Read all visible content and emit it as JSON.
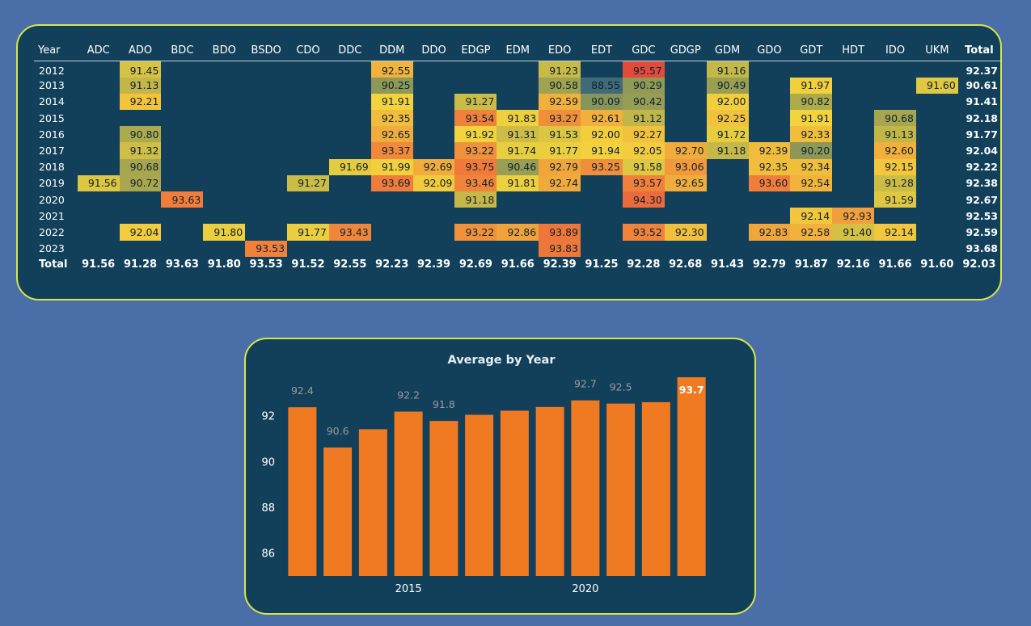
{
  "matrix": {
    "year_header": "Year",
    "total_header": "Total",
    "columns": [
      "ADC",
      "ADO",
      "BDC",
      "BDO",
      "BSDO",
      "CDO",
      "DDC",
      "DDM",
      "DDO",
      "EDGP",
      "EDM",
      "EDO",
      "EDT",
      "GDC",
      "GDGP",
      "GDM",
      "GDO",
      "GDT",
      "HDT",
      "IDO",
      "UKM"
    ],
    "rows": [
      {
        "year": "2012",
        "cells": {
          "ADO": "91.45",
          "DDM": "92.55",
          "EDO": "91.23",
          "GDC": "95.57",
          "GDM": "91.16"
        },
        "total": "92.37"
      },
      {
        "year": "2013",
        "cells": {
          "ADO": "91.13",
          "DDM": "90.25",
          "EDO": "90.58",
          "EDT": "88.55",
          "GDC": "90.29",
          "GDM": "90.49",
          "GDT": "91.97",
          "UKM": "91.60"
        },
        "total": "90.61"
      },
      {
        "year": "2014",
        "cells": {
          "ADO": "92.21",
          "DDM": "91.91",
          "EDGP": "91.27",
          "EDO": "92.59",
          "EDT": "90.09",
          "GDC": "90.42",
          "GDM": "92.00",
          "GDT": "90.82"
        },
        "total": "91.41"
      },
      {
        "year": "2015",
        "cells": {
          "DDM": "92.35",
          "EDGP": "93.54",
          "EDM": "91.83",
          "EDO": "93.27",
          "EDT": "92.61",
          "GDC": "91.12",
          "GDM": "92.25",
          "GDT": "91.91",
          "IDO": "90.68"
        },
        "total": "92.18"
      },
      {
        "year": "2016",
        "cells": {
          "ADO": "90.80",
          "DDM": "92.65",
          "EDGP": "91.92",
          "EDM": "91.31",
          "EDO": "91.53",
          "EDT": "92.00",
          "GDC": "92.27",
          "GDM": "91.72",
          "GDT": "92.33",
          "IDO": "91.13"
        },
        "total": "91.77"
      },
      {
        "year": "2017",
        "cells": {
          "ADO": "91.32",
          "DDM": "93.37",
          "EDGP": "93.22",
          "EDM": "91.74",
          "EDO": "91.77",
          "EDT": "91.94",
          "GDC": "92.05",
          "GDGP": "92.70",
          "GDM": "91.18",
          "GDO": "92.39",
          "GDT": "90.20",
          "IDO": "92.60"
        },
        "total": "92.04"
      },
      {
        "year": "2018",
        "cells": {
          "ADO": "90.68",
          "DDC": "91.69",
          "DDM": "91.99",
          "DDO": "92.69",
          "EDGP": "93.75",
          "EDM": "90.46",
          "EDO": "92.79",
          "EDT": "93.25",
          "GDC": "91.58",
          "GDGP": "93.06",
          "GDO": "92.35",
          "GDT": "92.34",
          "IDO": "92.15"
        },
        "total": "92.22"
      },
      {
        "year": "2019",
        "cells": {
          "ADC": "91.56",
          "ADO": "90.72",
          "CDO": "91.27",
          "DDM": "93.69",
          "DDO": "92.09",
          "EDGP": "93.46",
          "EDM": "91.81",
          "EDO": "92.74",
          "GDC": "93.57",
          "GDGP": "92.65",
          "GDO": "93.60",
          "GDT": "92.54",
          "IDO": "91.28"
        },
        "total": "92.38"
      },
      {
        "year": "2020",
        "cells": {
          "BDC": "93.63",
          "EDGP": "91.18",
          "GDC": "94.30",
          "IDO": "91.59"
        },
        "total": "92.67"
      },
      {
        "year": "2021",
        "cells": {
          "GDT": "92.14",
          "HDT": "92.93"
        },
        "total": "92.53"
      },
      {
        "year": "2022",
        "cells": {
          "ADO": "92.04",
          "BDO": "91.80",
          "CDO": "91.77",
          "DDC": "93.43",
          "EDGP": "93.22",
          "EDM": "92.86",
          "EDO": "93.89",
          "GDC": "93.52",
          "GDGP": "92.30",
          "GDO": "92.83",
          "GDT": "92.58",
          "HDT": "91.40",
          "IDO": "92.14"
        },
        "total": "92.59"
      },
      {
        "year": "2023",
        "cells": {
          "BSDO": "93.53",
          "EDO": "93.83"
        },
        "total": "93.68"
      }
    ],
    "totals_row": {
      "label": "Total",
      "values": [
        "91.56",
        "91.28",
        "93.63",
        "91.80",
        "93.53",
        "91.52",
        "92.55",
        "92.23",
        "92.39",
        "92.69",
        "91.66",
        "92.39",
        "91.25",
        "92.28",
        "92.68",
        "91.43",
        "92.79",
        "91.87",
        "92.16",
        "91.66",
        "91.60"
      ],
      "grand_total": "92.03"
    },
    "heat_colors": {
      "low": "#3c6a78",
      "mid_low": "#9a9f52",
      "mid": "#f2d33d",
      "high": "#f07e3a",
      "max": "#e04a3c"
    }
  },
  "chart_data": {
    "type": "bar",
    "title": "Average by Year",
    "categories": [
      "2012",
      "2013",
      "2014",
      "2015",
      "2016",
      "2017",
      "2018",
      "2019",
      "2020",
      "2021",
      "2022",
      "2023"
    ],
    "values": [
      92.37,
      90.61,
      91.41,
      92.18,
      91.77,
      92.04,
      92.22,
      92.38,
      92.67,
      92.53,
      92.59,
      93.68
    ],
    "data_labels": [
      "92.4",
      "90.6",
      "",
      "92.2",
      "91.8",
      "",
      "",
      "",
      "92.7",
      "92.5",
      "",
      "93.7"
    ],
    "x_tick_labels": [
      {
        "label": "2015",
        "category": "2015"
      },
      {
        "label": "2020",
        "category": "2020"
      }
    ],
    "y_ticks": [
      86,
      88,
      90,
      92
    ],
    "ylim": [
      85,
      94
    ],
    "bar_color": "#f07a22",
    "highlight_label": "93.7",
    "xlabel": "",
    "ylabel": "",
    "grid": false
  }
}
